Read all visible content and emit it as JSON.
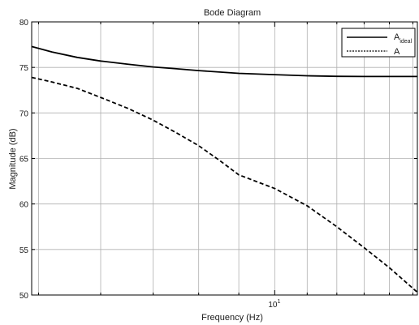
{
  "chart_data": {
    "type": "line",
    "title": "Bode Diagram",
    "xlabel": "Frequency  (Hz)",
    "ylabel": "Magnitude (dB)",
    "x_scale": "log",
    "xlim": [
      4.9,
      15.2
    ],
    "ylim": [
      50,
      80
    ],
    "yticks": [
      50,
      55,
      60,
      65,
      70,
      75,
      80
    ],
    "xtick_minor": [
      5,
      6,
      7,
      8,
      9,
      11,
      12,
      13,
      14,
      15
    ],
    "xtick_major": {
      "value": 10,
      "base": "10",
      "exponent": "1"
    },
    "grid": true,
    "legend_position": "top-right",
    "series": [
      {
        "key": "A_ideal",
        "name": "A",
        "name_subscript": "ideal",
        "color": "#000000",
        "linestyle": "solid",
        "points": [
          [
            4.9,
            77.3
          ],
          [
            5.2,
            76.7
          ],
          [
            5.6,
            76.1
          ],
          [
            6.0,
            75.7
          ],
          [
            6.5,
            75.35
          ],
          [
            7.0,
            75.05
          ],
          [
            7.5,
            74.85
          ],
          [
            8.0,
            74.65
          ],
          [
            9.0,
            74.35
          ],
          [
            10.0,
            74.2
          ],
          [
            11.0,
            74.08
          ],
          [
            12.0,
            74.02
          ],
          [
            13.0,
            74.0
          ],
          [
            15.2,
            74.0
          ]
        ]
      },
      {
        "key": "A",
        "name": "A",
        "color": "#000000",
        "linestyle": "dashed",
        "points": [
          [
            4.9,
            73.9
          ],
          [
            5.2,
            73.4
          ],
          [
            5.6,
            72.7
          ],
          [
            6.0,
            71.7
          ],
          [
            6.5,
            70.5
          ],
          [
            7.0,
            69.2
          ],
          [
            7.5,
            67.8
          ],
          [
            8.0,
            66.4
          ],
          [
            8.5,
            64.8
          ],
          [
            9.0,
            63.2
          ],
          [
            10.0,
            61.7
          ],
          [
            11.0,
            59.8
          ],
          [
            12.0,
            57.5
          ],
          [
            13.0,
            55.2
          ],
          [
            14.0,
            53.0
          ],
          [
            15.2,
            50.3
          ]
        ]
      }
    ]
  }
}
